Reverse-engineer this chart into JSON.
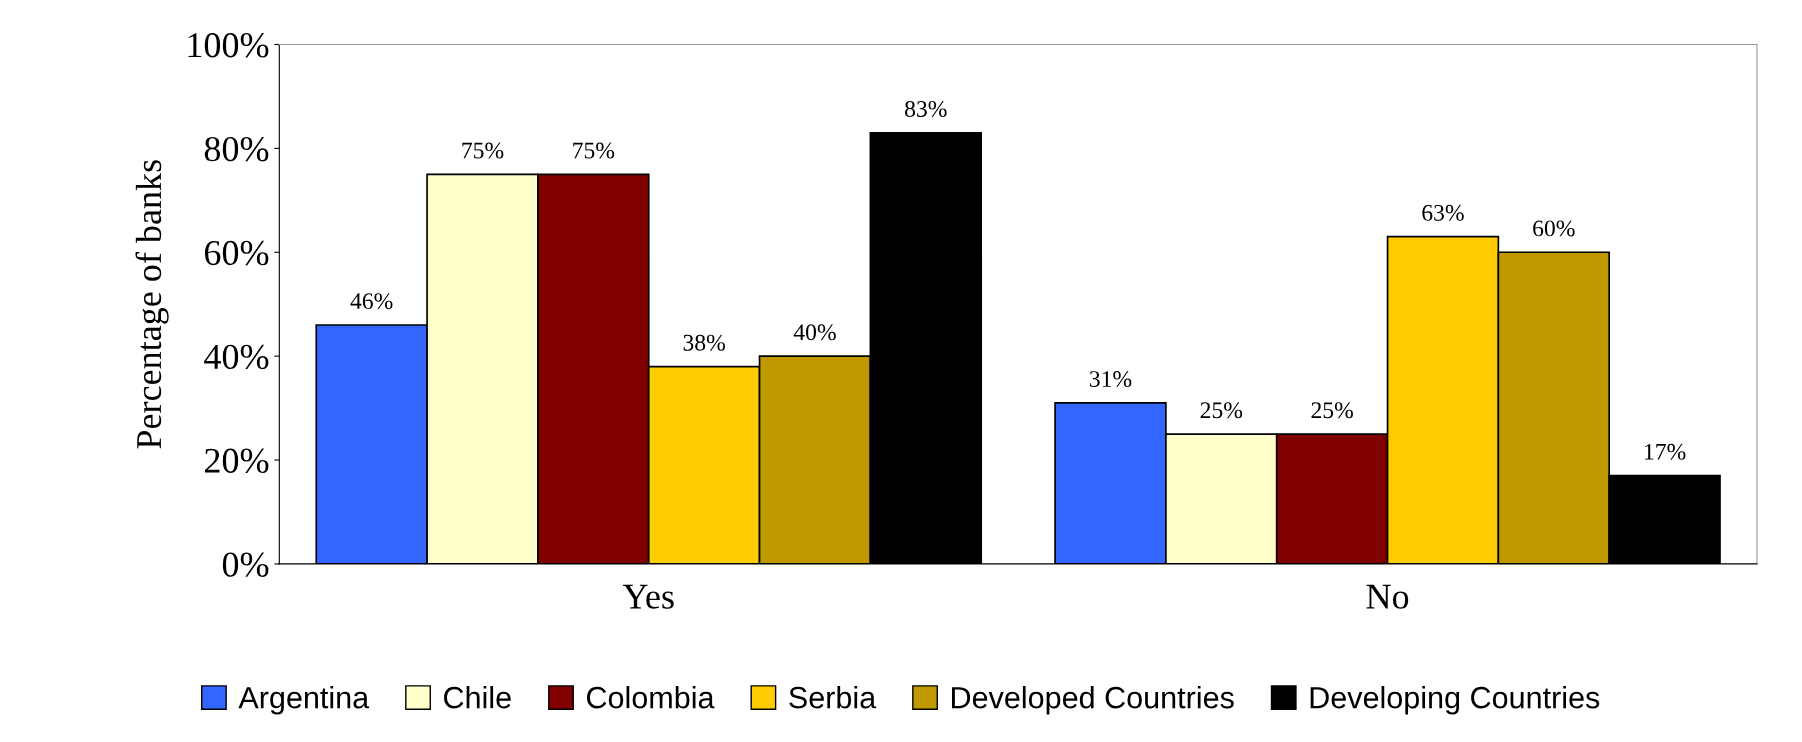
{
  "chart_data": {
    "type": "bar",
    "ylabel": "Percentage of banks",
    "categories": [
      "Yes",
      "No"
    ],
    "series": [
      {
        "name": "Argentina",
        "color": "#3366ff",
        "values": [
          46,
          31
        ],
        "value_labels": [
          "46%",
          "31%"
        ]
      },
      {
        "name": "Chile",
        "color": "#ffffcc",
        "values": [
          75,
          25
        ],
        "value_labels": [
          "75%",
          "25%"
        ]
      },
      {
        "name": "Colombia",
        "color": "#800000",
        "values": [
          75,
          25
        ],
        "value_labels": [
          "75%",
          "25%"
        ]
      },
      {
        "name": "Serbia",
        "color": "#ffcc00",
        "values": [
          38,
          63
        ],
        "value_labels": [
          "38%",
          "63%"
        ]
      },
      {
        "name": "Developed Countries",
        "color": "#c09900",
        "values": [
          40,
          60
        ],
        "value_labels": [
          "40%",
          "60%"
        ]
      },
      {
        "name": "Developing Countries",
        "color": "#000000",
        "values": [
          83,
          17
        ],
        "value_labels": [
          "83%",
          "17%"
        ]
      }
    ],
    "ylim": [
      0,
      100
    ],
    "yticks": [
      {
        "value": 0,
        "label": "0%"
      },
      {
        "value": 20,
        "label": "20%"
      },
      {
        "value": 40,
        "label": "40%"
      },
      {
        "value": 60,
        "label": "60%"
      },
      {
        "value": 80,
        "label": "80%"
      },
      {
        "value": 100,
        "label": "100%"
      }
    ],
    "grid": false,
    "legend": "bottom"
  }
}
